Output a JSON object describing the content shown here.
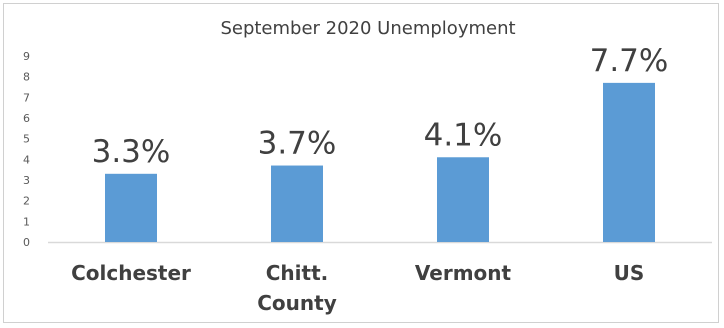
{
  "chart_data": {
    "type": "bar",
    "title": "September 2020 Unemployment",
    "xlabel": "",
    "ylabel": "",
    "categories": [
      [
        "Colchester"
      ],
      [
        "Chitt.",
        "County"
      ],
      [
        "Vermont"
      ],
      [
        "US"
      ]
    ],
    "values": [
      3.3,
      3.7,
      4.1,
      7.7
    ],
    "data_labels": [
      "3.3%",
      "3.7%",
      "4.1%",
      "7.7%"
    ],
    "ylim": [
      0,
      9
    ],
    "yticks": [
      "0",
      "1",
      "2",
      "3",
      "4",
      "5",
      "6",
      "7",
      "8",
      "9"
    ],
    "grid": false,
    "legend": "none",
    "bar_color": "#5b9bd5",
    "axis_color": "#d9d9d9",
    "text_color": "#404040"
  }
}
